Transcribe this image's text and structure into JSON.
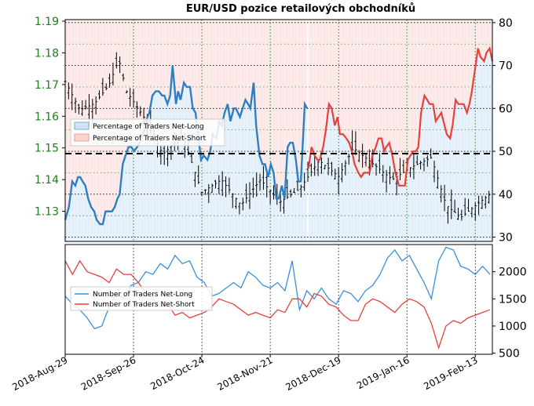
{
  "chart_data": [
    {
      "panel": "price-and-percentage",
      "type": "line",
      "title": "EUR/USD pozice retailových obchodníků",
      "xlabel": "",
      "ylabel": "",
      "x_tick_labels": [
        "2018-Aug-29",
        "2018-Sep-26",
        "2018-Oct-24",
        "2018-Nov-21",
        "2018-Dec-19",
        "2019-Jan-16",
        "2019-Feb-13"
      ],
      "grid": true,
      "legend_position": "upper-left",
      "y_left": {
        "ticks": [
          "1.13",
          "1.14",
          "1.15",
          "1.16",
          "1.17",
          "1.18",
          "1.19"
        ],
        "lim": [
          1.1205,
          1.1905
        ],
        "color": "#1a7f1a"
      },
      "y_right": {
        "ticks": [
          "30",
          "40",
          "50",
          "60",
          "70",
          "80"
        ],
        "lim": [
          29,
          80.7
        ]
      },
      "reference_line": {
        "axis": "right",
        "y": 50
      },
      "series": [
        {
          "name": "Percentage of Traders Net-Long",
          "axis": "right",
          "color": "#2f7fc0",
          "fill": "#cfe3f5",
          "x": [
            0,
            1.2,
            2.3,
            3.3,
            4.2,
            4.9,
            5.7,
            6.6,
            7.5,
            8.5,
            9.5,
            10.3,
            11.4,
            12.3,
            13.2,
            14.3,
            15.3,
            16.2,
            17.1,
            17.8,
            18.8,
            19.7,
            20.7,
            21.6,
            22.5,
            23.5,
            24.3,
            25.2,
            26.3,
            27.5,
            28.5,
            29.6,
            30.6,
            31.7,
            32.4,
            33.4,
            34.3,
            35.1,
            36.2,
            36.9,
            37.7,
            38.8,
            39.7,
            40.8,
            41.7,
            42.6,
            43.6,
            44.4,
            45.3,
            46.5,
            47.4,
            48.2,
            49.4,
            50.3,
            51.2,
            52.1,
            53.1,
            54.0,
            55.1,
            55.8,
            57.1,
            58.0,
            58.9,
            59.8,
            60.5,
            61.6,
            62.4,
            63.5,
            64.5,
            65.3,
            66.3,
            67.2,
            68.1,
            69.0,
            69.8,
            70.8,
            71.7,
            72.7,
            73.5,
            74.4,
            75.4,
            76.2,
            77.0,
            78.3,
            79.1
          ],
          "values": [
            34,
            37,
            43,
            42,
            44,
            44,
            43,
            42,
            39,
            37,
            36,
            34,
            33,
            33,
            36,
            36,
            36,
            37,
            39,
            40,
            47,
            49,
            51,
            51,
            50,
            51,
            52,
            53,
            57,
            59,
            63,
            64,
            64,
            63,
            63,
            61,
            63,
            70,
            61,
            64,
            62,
            66,
            65,
            65,
            60,
            59,
            53,
            48,
            49,
            48,
            50,
            54,
            53,
            57,
            56,
            59,
            61,
            57,
            60,
            60,
            58,
            60,
            62,
            61,
            60,
            66,
            56,
            49,
            47,
            47,
            44,
            47,
            45,
            39,
            39,
            42,
            39,
            51,
            52,
            52,
            48,
            43,
            43,
            61,
            60
          ]
        },
        {
          "name": "Percentage of Traders Net-Short",
          "axis": "right",
          "color": "#e8413c",
          "fill": "#f9d4d2",
          "x": [
            79.5,
            80.5,
            81.5,
            82.5,
            83.2,
            84.3,
            85.2,
            86.2,
            87.1,
            88.1,
            89.0,
            89.8,
            90.8,
            91.9,
            92.8,
            93.7,
            94.6,
            95.8,
            96.7,
            97.7,
            98.5,
            99.5,
            100.4,
            101.5,
            102.4,
            103.4,
            104.2,
            104.9,
            105.9,
            106.9,
            107.9,
            109.1,
            110.0,
            111.0,
            112.0,
            112.8,
            113.7,
            114.6,
            115.4,
            116.3,
            117.4,
            118.3,
            119.1,
            120.2,
            121.1,
            122.0,
            122.9,
            123.6,
            124.7,
            125.8,
            126.6,
            127.6,
            128.5,
            129.3,
            130.2,
            131.3,
            132.1,
            132.9,
            133.9,
            134.9,
            135.7,
            136.9,
            137.7,
            138.7,
            139.6
          ],
          "values": [
            46,
            51,
            49,
            48,
            48,
            51,
            55,
            61,
            60,
            56,
            58,
            54,
            54,
            53,
            52,
            50,
            47,
            45,
            44,
            45,
            45,
            45,
            49,
            51,
            53,
            53,
            50,
            51,
            52,
            49,
            45,
            42,
            42,
            42,
            48,
            49,
            50,
            50,
            51,
            59,
            63,
            62,
            61,
            61,
            57,
            58,
            59,
            57,
            54,
            53,
            56,
            62,
            61,
            61,
            61,
            59,
            61,
            64,
            69,
            74,
            72,
            71,
            73,
            74,
            71
          ]
        },
        {
          "name": "EUR/USD",
          "axis": "left",
          "type": "ohlc",
          "color": "#000000",
          "x_start_day": 0,
          "x_end_day": 175,
          "trend_points": [
            {
              "day": 0,
              "price": 1.171
            },
            {
              "day": 6,
              "price": 1.162
            },
            {
              "day": 12,
              "price": 1.164
            },
            {
              "day": 18,
              "price": 1.17
            },
            {
              "day": 22,
              "price": 1.178
            },
            {
              "day": 25,
              "price": 1.168
            },
            {
              "day": 32,
              "price": 1.16
            },
            {
              "day": 40,
              "price": 1.148
            },
            {
              "day": 48,
              "price": 1.154
            },
            {
              "day": 56,
              "price": 1.136
            },
            {
              "day": 64,
              "price": 1.14
            },
            {
              "day": 72,
              "price": 1.132
            },
            {
              "day": 80,
              "price": 1.14
            },
            {
              "day": 88,
              "price": 1.133
            },
            {
              "day": 96,
              "price": 1.137
            },
            {
              "day": 104,
              "price": 1.146
            },
            {
              "day": 112,
              "price": 1.141
            },
            {
              "day": 118,
              "price": 1.15
            },
            {
              "day": 126,
              "price": 1.145
            },
            {
              "day": 134,
              "price": 1.14
            },
            {
              "day": 142,
              "price": 1.144
            },
            {
              "day": 150,
              "price": 1.147
            },
            {
              "day": 156,
              "price": 1.132
            },
            {
              "day": 162,
              "price": 1.128
            },
            {
              "day": 170,
              "price": 1.133
            },
            {
              "day": 175,
              "price": 1.136
            }
          ]
        }
      ],
      "legend": [
        "Percentage of Traders Net-Long",
        "Percentage of Traders Net-Short"
      ]
    },
    {
      "panel": "trader-counts",
      "type": "line",
      "x_tick_labels": [
        "2018-Aug-29",
        "2018-Sep-26",
        "2018-Oct-24",
        "2018-Nov-21",
        "2018-Dec-19",
        "2019-Jan-16",
        "2019-Feb-13"
      ],
      "grid": true,
      "legend_position": "center-left",
      "y_right": {
        "ticks": [
          "500",
          "1000",
          "1500",
          "2000"
        ],
        "lim": [
          480,
          2500
        ]
      },
      "series": [
        {
          "name": "Number of Traders Net-Long",
          "color": "#3a8fd9",
          "x": [
            0,
            3,
            6,
            9,
            12,
            15,
            18,
            21,
            24,
            27,
            30,
            33,
            36,
            39,
            42,
            45,
            48,
            51,
            54,
            57,
            60,
            63,
            66,
            69,
            72,
            75,
            78,
            81,
            84,
            87,
            90,
            93,
            96,
            99,
            102,
            105,
            108,
            111,
            114,
            117,
            120,
            123,
            126,
            129,
            132,
            135,
            138,
            141,
            144,
            147,
            150,
            153,
            156,
            159,
            162,
            165,
            168,
            171,
            174
          ],
          "values": [
            1550,
            1400,
            1300,
            1150,
            950,
            1000,
            1350,
            1600,
            1500,
            1750,
            1800,
            2000,
            1950,
            2150,
            2050,
            2300,
            2150,
            2200,
            1900,
            1800,
            1550,
            1600,
            1700,
            1800,
            1700,
            2000,
            1900,
            1750,
            1700,
            1800,
            1650,
            2200,
            1300,
            1650,
            1500,
            1700,
            1500,
            1400,
            1650,
            1600,
            1450,
            1650,
            1750,
            1950,
            2250,
            2400,
            2200,
            2300,
            2050,
            1800,
            1500,
            2200,
            2450,
            2400,
            2100,
            2050,
            1950,
            2100,
            1950
          ]
        },
        {
          "name": "Number of Traders Net-Short",
          "color": "#e8413c",
          "x": [
            0,
            3,
            6,
            9,
            12,
            15,
            18,
            21,
            24,
            27,
            30,
            33,
            36,
            39,
            42,
            45,
            48,
            51,
            54,
            57,
            60,
            63,
            66,
            69,
            72,
            75,
            78,
            81,
            84,
            87,
            90,
            93,
            96,
            99,
            102,
            105,
            108,
            111,
            114,
            117,
            120,
            123,
            126,
            129,
            132,
            135,
            138,
            141,
            144,
            147,
            150,
            153,
            156,
            159,
            162,
            165,
            168,
            171,
            174
          ],
          "values": [
            2200,
            1950,
            2200,
            2000,
            1950,
            1900,
            1800,
            2050,
            1950,
            1950,
            1800,
            1600,
            1500,
            1350,
            1400,
            1200,
            1250,
            1150,
            1200,
            1250,
            1350,
            1500,
            1450,
            1400,
            1300,
            1200,
            1250,
            1200,
            1150,
            1300,
            1250,
            1500,
            1500,
            1350,
            1600,
            1550,
            1400,
            1350,
            1200,
            1100,
            1100,
            1400,
            1500,
            1450,
            1350,
            1250,
            1400,
            1500,
            1450,
            1350,
            1050,
            600,
            1000,
            1100,
            1050,
            1150,
            1200,
            1250,
            1300
          ]
        }
      ],
      "legend": [
        "Number of Traders Net-Long",
        "Number of Traders Net-Short"
      ]
    }
  ]
}
